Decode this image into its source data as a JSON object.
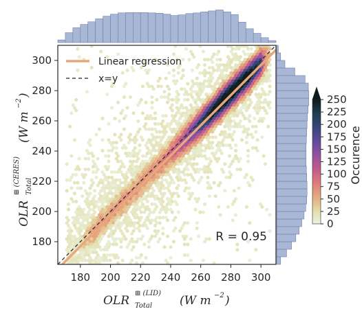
{
  "chart_data": {
    "type": "scatter",
    "subtype": "hexbin-joint-plot",
    "x_axis": {
      "ticks": [
        180,
        200,
        220,
        240,
        260,
        280,
        300
      ],
      "range": [
        165,
        310
      ],
      "label": {
        "main": "OLR",
        "sup": "⊞ (LID)",
        "sub": "Total",
        "units": "(W m",
        "units_exp": "−2",
        "units_close": ")"
      }
    },
    "y_axis": {
      "ticks": [
        180,
        200,
        220,
        240,
        260,
        280,
        300
      ],
      "range": [
        165,
        310
      ],
      "label": {
        "main": "OLR",
        "sup": "⊞ (CERES)",
        "sub": "Total",
        "units": "(W m",
        "units_exp": "−2",
        "units_close": ")"
      }
    },
    "regression": {
      "slope": 1.0,
      "intercept": -3.0
    },
    "identity_line": true,
    "annotation": "R = 0.95",
    "legend": {
      "position": "top-left",
      "entries": [
        {
          "label": "Linear regression",
          "style": "solid",
          "color": "#e8a87c"
        },
        {
          "label": "x=y",
          "style": "dashed",
          "color": "#222222"
        }
      ]
    },
    "colorbar": {
      "label": "Occurence",
      "ticks": [
        0,
        25,
        50,
        75,
        100,
        125,
        150,
        175,
        200,
        225,
        250
      ],
      "range": [
        0,
        250
      ],
      "extend": "max",
      "colors": [
        "#e9f5e3",
        "#e4dba6",
        "#e6a87f",
        "#dc7b7a",
        "#c25b8e",
        "#9150a2",
        "#5d4b9c",
        "#354677",
        "#203d52",
        "#0c1b1e"
      ]
    },
    "top_histogram": {
      "bin_start": 165,
      "bin_width": 5,
      "heights": [
        0.08,
        0.3,
        0.45,
        0.55,
        0.63,
        0.72,
        0.8,
        0.86,
        0.9,
        0.91,
        0.91,
        0.91,
        0.9,
        0.89,
        0.86,
        0.82,
        0.84,
        0.88,
        0.9,
        0.93,
        0.96,
        0.99,
        0.93,
        0.85,
        0.62,
        0.42,
        0.28,
        0.15,
        0.06
      ]
    },
    "right_histogram": {
      "bin_start": 165,
      "bin_width": 5,
      "heights": [
        0.12,
        0.3,
        0.45,
        0.58,
        0.68,
        0.76,
        0.83,
        0.88,
        0.91,
        0.92,
        0.92,
        0.91,
        0.9,
        0.89,
        0.89,
        0.89,
        0.9,
        0.91,
        0.92,
        0.93,
        0.95,
        0.97,
        0.97,
        0.96,
        0.86,
        0.55,
        0.25,
        0.12,
        0.05
      ]
    },
    "density": {
      "band_center_slope": 1.0,
      "band_center_intercept": -2.0,
      "band_sigma": 5.5,
      "background_extent": 30,
      "x_mass_range": [
        190,
        300
      ],
      "peak_x": 280
    }
  }
}
